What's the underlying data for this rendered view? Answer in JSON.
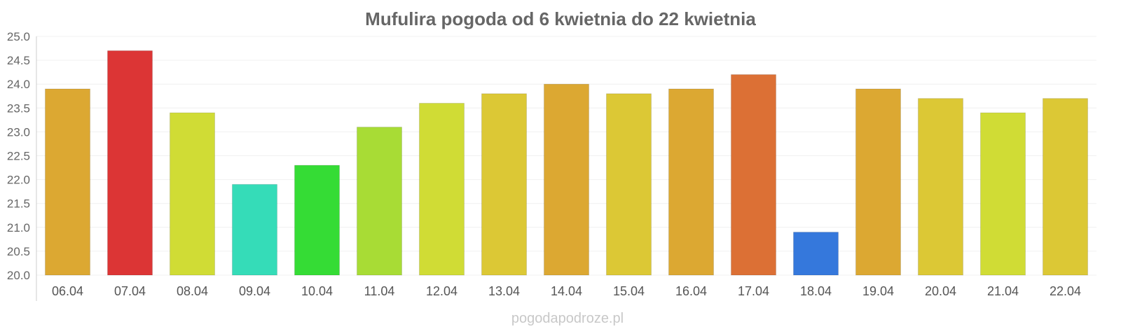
{
  "chart_data": {
    "type": "bar",
    "title": "Mufulira pogoda od 6 kwietnia do 22 kwietnia",
    "xlabel": "",
    "ylabel": "",
    "ylim": [
      20.0,
      25.0
    ],
    "yticks": [
      "20.0",
      "20.5",
      "21.0",
      "21.5",
      "22.0",
      "22.5",
      "23.0",
      "23.5",
      "24.0",
      "24.5",
      "25.0"
    ],
    "grid": true,
    "categories": [
      "06.04",
      "07.04",
      "08.04",
      "09.04",
      "10.04",
      "11.04",
      "12.04",
      "13.04",
      "14.04",
      "15.04",
      "16.04",
      "17.04",
      "18.04",
      "19.04",
      "20.04",
      "21.04",
      "22.04"
    ],
    "values": [
      23.9,
      24.7,
      23.4,
      21.9,
      22.3,
      23.1,
      23.6,
      23.8,
      24.0,
      23.8,
      23.9,
      24.2,
      20.9,
      23.9,
      23.7,
      23.4,
      23.7
    ],
    "colors": [
      "#dca832",
      "#dc3535",
      "#d0dc35",
      "#35dcb8",
      "#35dc35",
      "#a8dc35",
      "#d0dc35",
      "#dcc835",
      "#dca832",
      "#dcc835",
      "#dca832",
      "#dc7035",
      "#3578dc",
      "#dca832",
      "#dcc835",
      "#d0dc35",
      "#dcc835"
    ]
  },
  "watermark": "pogodapodroze.pl"
}
